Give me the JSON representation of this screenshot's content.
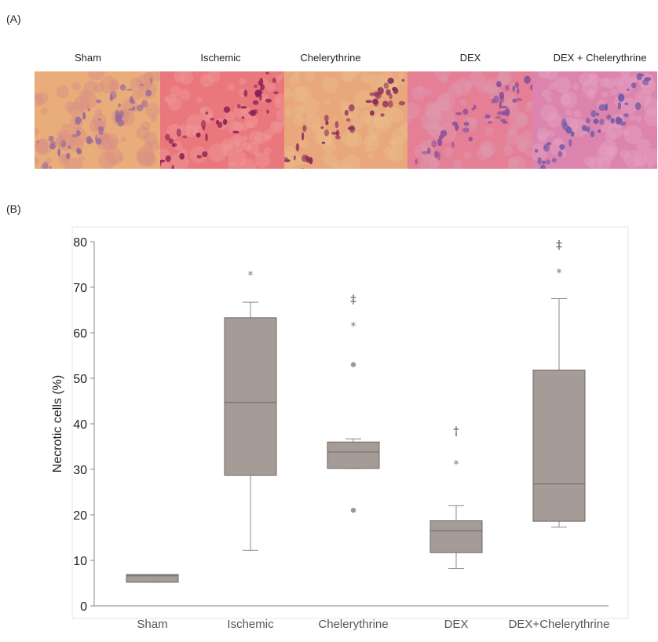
{
  "panel_a_label": "(A)",
  "panel_b_label": "(B)",
  "micrographs": [
    {
      "label": "Sham",
      "base": "#e8ad7a",
      "tint": "#d98d86",
      "stain": "#9a6a9a"
    },
    {
      "label": "Ischemic",
      "base": "#e9777c",
      "tint": "#ef9a98",
      "stain": "#8a1f55"
    },
    {
      "label": "Chelerythrine",
      "base": "#e9a77c",
      "tint": "#e8bd8a",
      "stain": "#8c2a5a"
    },
    {
      "label": "DEX",
      "base": "#e47f96",
      "tint": "#de9ab0",
      "stain": "#8a4f9c"
    },
    {
      "label": "DEX + Chelerythrine",
      "base": "#dc84ae",
      "tint": "#e4a2c2",
      "stain": "#6f5aa8"
    }
  ],
  "chart_data": {
    "type": "box",
    "ylabel": "Necrotic cells (%)",
    "ylim": [
      0,
      80
    ],
    "yticks": [
      0,
      10,
      20,
      30,
      40,
      50,
      60,
      70,
      80
    ],
    "box_color": "#a59c98",
    "categories": [
      "Sham",
      "Ischemic",
      "Chelerythrine",
      "DEX",
      "DEX+Chelerythrine"
    ],
    "boxes": [
      {
        "name": "Sham",
        "whisker_low": 5.2,
        "q1": 5.2,
        "median": 6.6,
        "q3": 6.9,
        "whisker_high": 6.9,
        "outliers": [],
        "extremes": [],
        "marker": ""
      },
      {
        "name": "Ischemic",
        "whisker_low": 12.2,
        "q1": 28.7,
        "median": 44.7,
        "q3": 63.3,
        "whisker_high": 66.7,
        "outliers": [],
        "extremes": [
          73.0
        ],
        "marker": ""
      },
      {
        "name": "Chelerythrine",
        "whisker_low": 30.2,
        "q1": 30.2,
        "median": 33.8,
        "q3": 36.0,
        "whisker_high": 36.7,
        "outliers": [
          53.0,
          21.0
        ],
        "extremes": [
          61.8
        ],
        "marker": "‡",
        "marker_y": 67.5
      },
      {
        "name": "DEX",
        "whisker_low": 8.2,
        "q1": 11.7,
        "median": 16.5,
        "q3": 18.7,
        "whisker_high": 22.0,
        "outliers": [],
        "extremes": [
          31.5
        ],
        "marker": "†",
        "marker_y": 38.5
      },
      {
        "name": "DEX+Chelerythrine",
        "whisker_low": 17.3,
        "q1": 18.6,
        "median": 26.8,
        "q3": 51.8,
        "whisker_high": 67.5,
        "outliers": [],
        "extremes": [
          73.5
        ],
        "marker": "‡",
        "marker_y": 79.5
      }
    ]
  }
}
